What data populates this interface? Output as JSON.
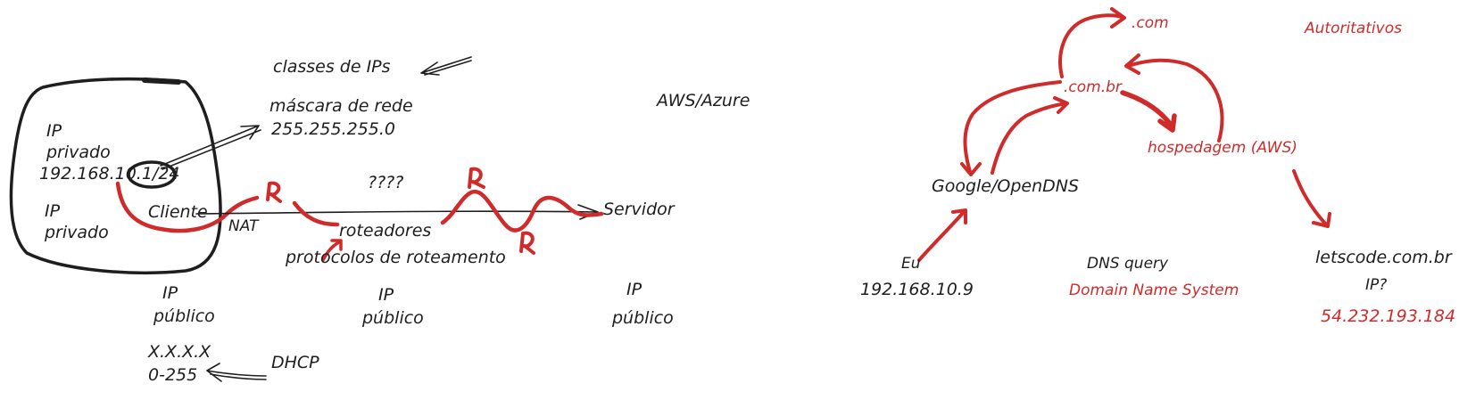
{
  "colors": {
    "ink": "#1e1e1e",
    "accent": "#d02b2b"
  },
  "left": {
    "ip_classes": "classes de IPs",
    "netmask_label": "máscara de rede",
    "netmask_value": "255.255.255.0",
    "cloud": "AWS/Azure",
    "private_ip_1_line1": "IP",
    "private_ip_1_line2": "privado",
    "private_ip_address": "192.168.10.1/24",
    "private_ip_2_line1": "IP",
    "private_ip_2_line2": "privado",
    "client": "Cliente",
    "nat": "NAT",
    "unknown": "????",
    "routers": "roteadores",
    "router_symbol": "R",
    "routing_protocols": "protocolos de roteamento",
    "server": "Servidor",
    "public_ips": [
      {
        "line1": "IP",
        "line2": "público"
      },
      {
        "line1": "IP",
        "line2": "público"
      },
      {
        "line1": "IP",
        "line2": "público"
      }
    ],
    "address_format": "X.X.X.X",
    "octet_range": "0-255",
    "dhcp": "DHCP"
  },
  "right": {
    "tld_com": ".com",
    "authoritative": "Autoritativos",
    "tld_com_br": ".com.br",
    "hosting": "hospedagem (AWS)",
    "resolver": "Google/OpenDNS",
    "me": "Eu",
    "my_ip": "192.168.10.9",
    "dns_query": "DNS query",
    "dns_expansion": "Domain Name System",
    "domain": "letscode.com.br",
    "ip_question": "IP?",
    "resolved_ip": "54.232.193.184"
  }
}
